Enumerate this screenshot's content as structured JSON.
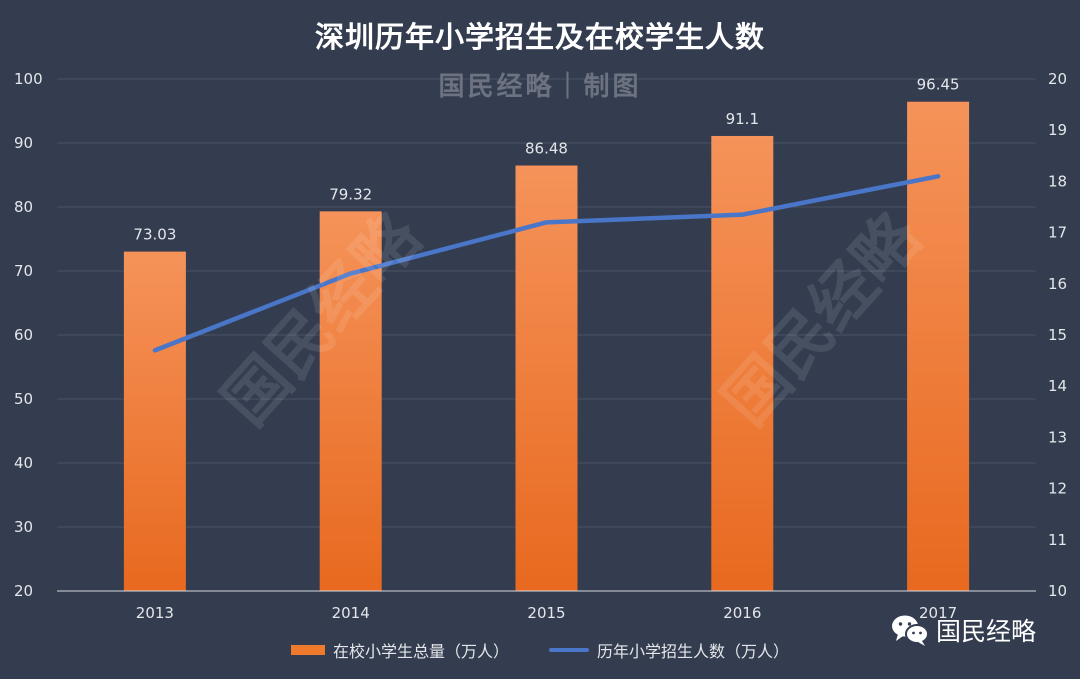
{
  "title": "深圳历年小学招生及在校学生人数",
  "watermark": "国民经略｜制图",
  "watermark_diagonal": "国民经略",
  "brand": {
    "name": "国民经略",
    "icon": "wechat-icon"
  },
  "colors": {
    "background": "#333d4f",
    "bar_top": "#f5935a",
    "bar_bottom": "#e8691f",
    "line": "#4a76c9",
    "grid": "#4a5466",
    "axis_text": "#e4e6ea"
  },
  "chart_data": {
    "type": "bar+line",
    "categories": [
      "2013",
      "2014",
      "2015",
      "2016",
      "2017"
    ],
    "series": [
      {
        "name": "在校小学生总量（万人）",
        "type": "bar",
        "axis": "left",
        "values": [
          73.03,
          79.32,
          86.48,
          91.1,
          96.45
        ],
        "labels": [
          "73.03",
          "79.32",
          "86.48",
          "91.1",
          "96.45"
        ]
      },
      {
        "name": "历年小学招生人数（万人）",
        "type": "line",
        "axis": "right",
        "values": [
          14.7,
          16.2,
          17.2,
          17.35,
          18.1
        ]
      }
    ],
    "y_left": {
      "min": 20,
      "max": 100,
      "ticks": [
        20,
        30,
        40,
        50,
        60,
        70,
        80,
        90,
        100
      ]
    },
    "y_right": {
      "min": 10,
      "max": 20,
      "ticks": [
        10,
        11,
        12,
        13,
        14,
        15,
        16,
        17,
        18,
        19,
        20
      ]
    },
    "grid": true,
    "legend_position": "bottom"
  }
}
